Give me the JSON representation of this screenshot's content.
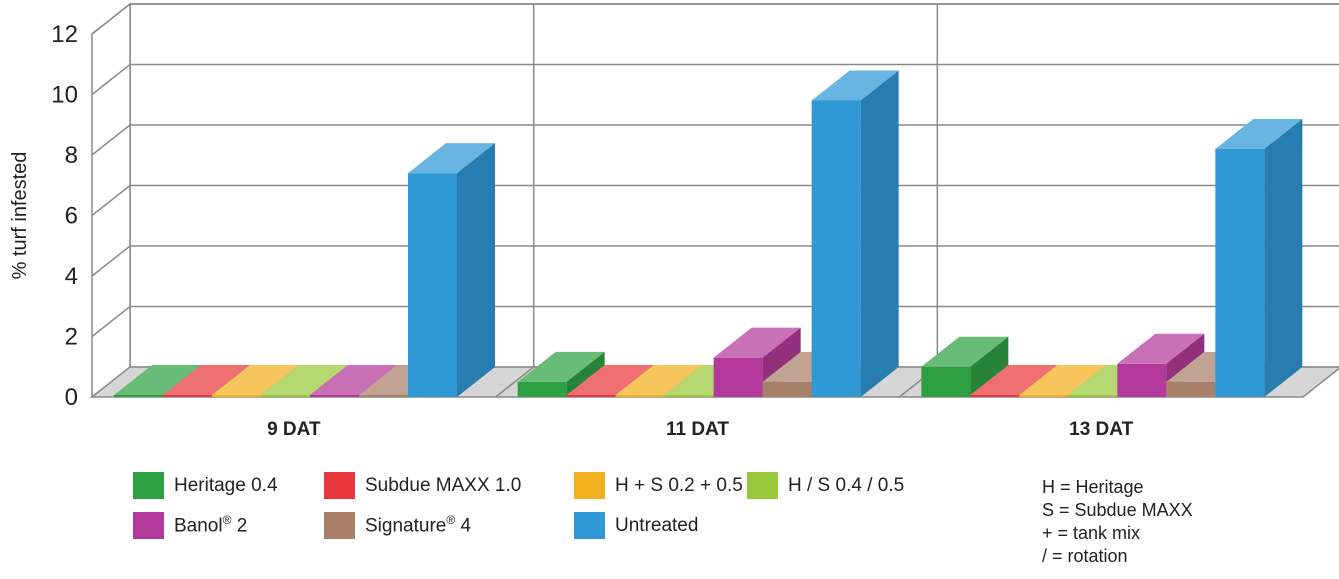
{
  "chart_data": {
    "type": "bar",
    "title": "",
    "xlabel": "",
    "ylabel": "% turf infested",
    "ylim": [
      0,
      12
    ],
    "yticks": [
      0,
      2,
      4,
      6,
      8,
      10,
      12
    ],
    "categories": [
      "9 DAT",
      "11 DAT",
      "13 DAT"
    ],
    "series": [
      {
        "name": "Heritage 0.4",
        "color": "#2ea044",
        "values": [
          0,
          0.5,
          1.0
        ]
      },
      {
        "name": "Subdue MAXX 1.0",
        "color": "#e8383d",
        "values": [
          0,
          0,
          0
        ]
      },
      {
        "name": "H + S 0.2 + 0.5",
        "color": "#f2b01e",
        "values": [
          0,
          0,
          0
        ]
      },
      {
        "name": "H / S 0.4 / 0.5",
        "color": "#99c93a",
        "values": [
          0,
          0,
          0
        ]
      },
      {
        "name": "Banol 2",
        "color": "#b33a9a",
        "values": [
          0,
          1.3,
          1.1
        ]
      },
      {
        "name": "Signature 4",
        "color": "#a87f68",
        "values": [
          0,
          0.5,
          0.5
        ]
      },
      {
        "name": "Untreated",
        "color": "#2f98d5",
        "values": [
          7.4,
          9.8,
          8.2
        ]
      }
    ],
    "grid": true,
    "legend_position": "bottom"
  },
  "legend": {
    "items": [
      {
        "label": "Heritage 0.4",
        "sup": ""
      },
      {
        "label": "Subdue MAXX 1.0",
        "sup": ""
      },
      {
        "label": "H + S 0.2 + 0.5",
        "sup": ""
      },
      {
        "label": "H / S 0.4 / 0.5",
        "sup": ""
      },
      {
        "label": "Banol",
        "sup": "®",
        "suffix": " 2"
      },
      {
        "label": "Signature",
        "sup": "®",
        "suffix": " 4"
      },
      {
        "label": "Untreated",
        "sup": ""
      }
    ]
  },
  "notes": [
    "H = Heritage",
    "S = Subdue MAXX",
    "+ = tank mix",
    "/ = rotation"
  ]
}
